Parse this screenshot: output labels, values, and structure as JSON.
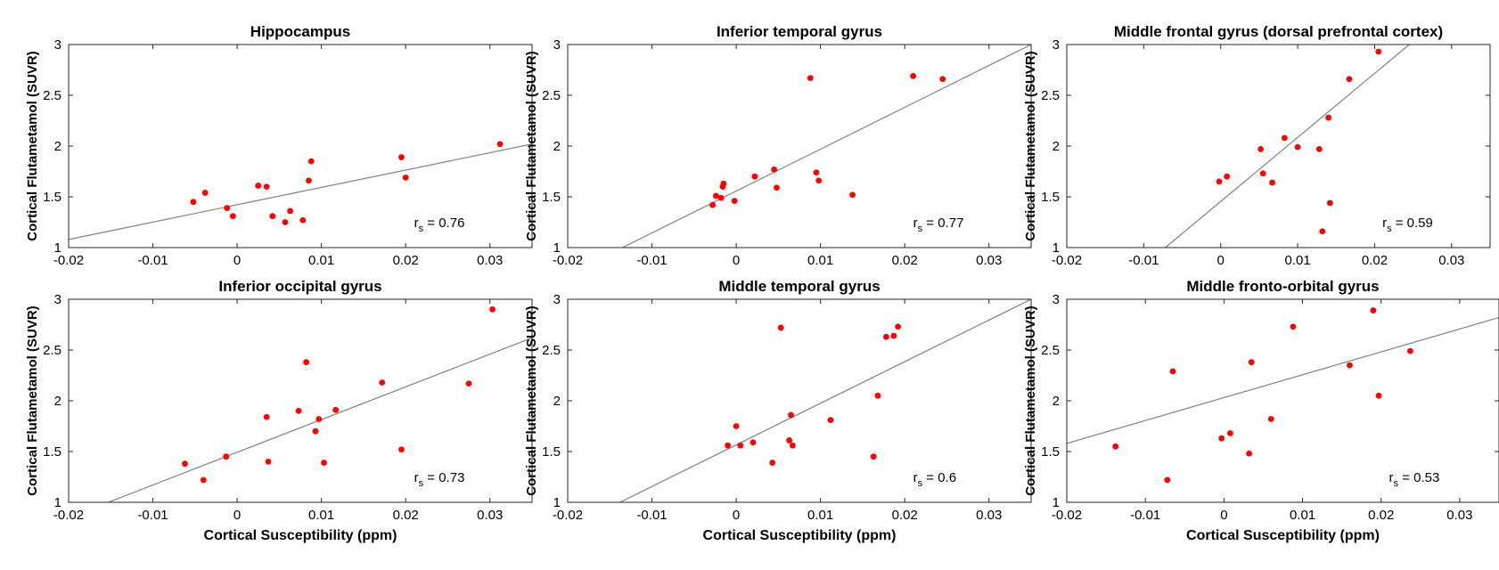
{
  "chart_data": [
    {
      "type": "scatter",
      "title": "Hippocampus",
      "xlabel": "",
      "ylabel": "Cortical Flutametamol (SUVR)",
      "xlim": [
        -0.02,
        0.035
      ],
      "ylim": [
        1,
        3
      ],
      "xticks": [
        -0.02,
        -0.01,
        0,
        0.01,
        0.02,
        0.03
      ],
      "xtick_labels": [
        "-0.02",
        "-0.01",
        "0",
        "0.01",
        "0.02",
        "0.03"
      ],
      "yticks": [
        1,
        1.5,
        2,
        2.5,
        3
      ],
      "ytick_labels": [
        "1",
        "1.5",
        "2",
        "2.5",
        "3"
      ],
      "x": [
        -0.0052,
        -0.0038,
        -0.0012,
        -0.0005,
        0.0025,
        0.0035,
        0.0042,
        0.0057,
        0.0063,
        0.0078,
        0.0085,
        0.0088,
        0.0195,
        0.02,
        0.0312
      ],
      "y": [
        1.45,
        1.54,
        1.39,
        1.31,
        1.61,
        1.6,
        1.31,
        1.25,
        1.36,
        1.27,
        1.66,
        1.85,
        1.89,
        1.69,
        2.02
      ],
      "fit_line": {
        "x": [
          -0.02,
          0.035
        ],
        "y": [
          1.08,
          2.02
        ]
      },
      "annotation": {
        "r": "r",
        "sub": "s",
        "text": " = 0.76"
      }
    },
    {
      "type": "scatter",
      "title": "Inferior temporal gyrus",
      "xlabel": "",
      "ylabel": "Cortical Flutametamol (SUVR)",
      "xlim": [
        -0.02,
        0.035
      ],
      "ylim": [
        1,
        3
      ],
      "xticks": [
        -0.02,
        -0.01,
        0,
        0.01,
        0.02,
        0.03
      ],
      "xtick_labels": [
        "-0.02",
        "-0.01",
        "0",
        "0.01",
        "0.02",
        "0.03"
      ],
      "yticks": [
        1,
        1.5,
        2,
        2.5,
        3
      ],
      "ytick_labels": [
        "1",
        "1.5",
        "2",
        "2.5",
        "3"
      ],
      "x": [
        -0.0028,
        -0.0024,
        -0.0018,
        -0.0016,
        -0.0015,
        -0.0002,
        0.0022,
        0.0045,
        0.0048,
        0.0088,
        0.0095,
        0.0098,
        0.0138,
        0.021,
        0.0245
      ],
      "y": [
        1.42,
        1.51,
        1.49,
        1.6,
        1.63,
        1.46,
        1.7,
        1.77,
        1.59,
        2.67,
        1.74,
        1.66,
        1.52,
        2.69,
        2.66
      ],
      "fit_line": {
        "x": [
          -0.0135,
          0.035
        ],
        "y": [
          1,
          3
        ]
      },
      "annotation": {
        "r": "r",
        "sub": "s",
        "text": " = 0.77"
      }
    },
    {
      "type": "scatter",
      "title": "Middle frontal gyrus (dorsal prefrontal cortex)",
      "xlabel": "",
      "ylabel": "Cortical Flutametamol (SUVR)",
      "xlim": [
        -0.02,
        0.035
      ],
      "ylim": [
        1,
        3
      ],
      "xticks": [
        -0.02,
        -0.01,
        0,
        0.01,
        0.02,
        0.03
      ],
      "xtick_labels": [
        "-0.02",
        "-0.01",
        "0",
        "0.01",
        "0.02",
        "0.03"
      ],
      "yticks": [
        1,
        1.5,
        2,
        2.5,
        3
      ],
      "ytick_labels": [
        "1",
        "1.5",
        "2",
        "2.5",
        "3"
      ],
      "x": [
        -0.0002,
        0.0008,
        0.0052,
        0.0055,
        0.0067,
        0.0083,
        0.01,
        0.0128,
        0.0132,
        0.014,
        0.0142,
        0.0167,
        0.0205
      ],
      "y": [
        1.65,
        1.7,
        1.97,
        1.73,
        1.64,
        2.08,
        1.99,
        1.97,
        1.16,
        2.28,
        1.44,
        2.66,
        2.93
      ],
      "fit_line": {
        "x": [
          -0.0072,
          0.0245
        ],
        "y": [
          1,
          3
        ]
      },
      "annotation": {
        "r": "r",
        "sub": "s",
        "text": " = 0.59"
      }
    },
    {
      "type": "scatter",
      "title": "Inferior occipital gyrus",
      "xlabel": "Cortical Susceptibility (ppm)",
      "ylabel": "Cortical Flutametamol (SUVR)",
      "xlim": [
        -0.02,
        0.035
      ],
      "ylim": [
        1,
        3
      ],
      "xticks": [
        -0.02,
        -0.01,
        0,
        0.01,
        0.02,
        0.03
      ],
      "xtick_labels": [
        "-0.02",
        "-0.01",
        "0",
        "0.01",
        "0.02",
        "0.03"
      ],
      "yticks": [
        1,
        1.5,
        2,
        2.5,
        3
      ],
      "ytick_labels": [
        "1",
        "1.5",
        "2",
        "2.5",
        "3"
      ],
      "x": [
        -0.0062,
        -0.004,
        -0.0013,
        0.0035,
        0.0037,
        0.0073,
        0.0082,
        0.0093,
        0.0097,
        0.0103,
        0.0117,
        0.0172,
        0.0195,
        0.0275,
        0.0303
      ],
      "y": [
        1.38,
        1.22,
        1.45,
        1.84,
        1.4,
        1.9,
        2.38,
        1.7,
        1.82,
        1.39,
        1.91,
        2.18,
        1.52,
        2.17,
        2.9
      ],
      "fit_line": {
        "x": [
          -0.0153,
          0.035
        ],
        "y": [
          1,
          2.62
        ]
      },
      "annotation": {
        "r": "r",
        "sub": "s",
        "text": " = 0.73"
      }
    },
    {
      "type": "scatter",
      "title": "Middle temporal gyrus",
      "xlabel": "Cortical Susceptibility (ppm)",
      "ylabel": "Cortical Flutametamol (SUVR)",
      "xlim": [
        -0.02,
        0.035
      ],
      "ylim": [
        1,
        3
      ],
      "xticks": [
        -0.02,
        -0.01,
        0,
        0.01,
        0.02,
        0.03
      ],
      "xtick_labels": [
        "-0.02",
        "-0.01",
        "0",
        "0.01",
        "0.02",
        "0.03"
      ],
      "yticks": [
        1,
        1.5,
        2,
        2.5,
        3
      ],
      "ytick_labels": [
        "1",
        "1.5",
        "2",
        "2.5",
        "3"
      ],
      "x": [
        -0.001,
        0.0,
        0.0005,
        0.002,
        0.0043,
        0.0053,
        0.0063,
        0.0065,
        0.0067,
        0.0112,
        0.0163,
        0.0168,
        0.0178,
        0.0187,
        0.0192
      ],
      "y": [
        1.56,
        1.75,
        1.56,
        1.59,
        1.39,
        2.72,
        1.61,
        1.86,
        1.56,
        1.81,
        1.45,
        2.05,
        2.63,
        2.64,
        2.73
      ],
      "fit_line": {
        "x": [
          -0.0138,
          0.035
        ],
        "y": [
          1,
          3
        ]
      },
      "annotation": {
        "r": "r",
        "sub": "s",
        "text": " = 0.6"
      }
    },
    {
      "type": "scatter",
      "title": "Middle fronto-orbital gyrus",
      "xlabel": "Cortical Susceptibility (ppm)",
      "ylabel": "Cortical Flutametamol (SUVR)",
      "xlim": [
        -0.02,
        0.035
      ],
      "ylim": [
        1,
        3
      ],
      "xticks": [
        -0.02,
        -0.01,
        0,
        0.01,
        0.02,
        0.03
      ],
      "xtick_labels": [
        "-0.02",
        "-0.01",
        "0",
        "0.01",
        "0.02",
        "0.03"
      ],
      "yticks": [
        1,
        1.5,
        2,
        2.5,
        3
      ],
      "ytick_labels": [
        "1",
        "1.5",
        "2",
        "2.5",
        "3"
      ],
      "x": [
        -0.0138,
        -0.0072,
        -0.0065,
        -0.0003,
        0.0008,
        0.0032,
        0.0035,
        0.006,
        0.0088,
        0.016,
        0.019,
        0.0197,
        0.0237
      ],
      "y": [
        1.55,
        1.22,
        2.29,
        1.63,
        1.68,
        1.48,
        2.38,
        1.82,
        2.73,
        2.35,
        2.89,
        2.05,
        2.49
      ],
      "fit_line": {
        "x": [
          -0.02,
          0.035
        ],
        "y": [
          1.58,
          2.82
        ]
      },
      "annotation": {
        "r": "r",
        "sub": "s",
        "text": " = 0.53"
      }
    }
  ],
  "colors": {
    "point": "#ff0000",
    "fit_line": "#808080",
    "axis": "#262626",
    "text": "#000000"
  }
}
